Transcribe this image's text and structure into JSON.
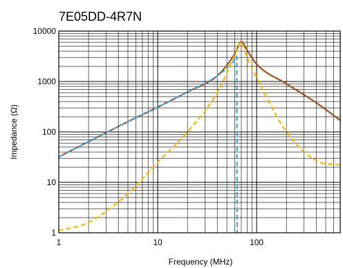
{
  "chart_data": {
    "type": "line",
    "title": "7E05DD-4R7N",
    "xlabel": "Frequency (MHz)",
    "ylabel": "Impedance (Ω)",
    "x_scale": "log",
    "y_scale": "log",
    "xlim": [
      1,
      700
    ],
    "ylim": [
      1,
      10000
    ],
    "x_tick_labels": [
      "1",
      "10",
      "100"
    ],
    "x_tick_values": [
      1,
      10,
      100
    ],
    "y_tick_labels": [
      "1",
      "10",
      "100",
      "1000",
      "10000"
    ],
    "y_tick_values": [
      1,
      10,
      100,
      1000,
      10000
    ],
    "grid": true,
    "legend": "none",
    "series": [
      {
        "color": "#A0501E",
        "style": "solid",
        "x": [
          1,
          2,
          5,
          10,
          20,
          40,
          60,
          70,
          80,
          100,
          200,
          400,
          700
        ],
        "y": [
          32,
          64,
          160,
          310,
          620,
          1300,
          3500,
          6200,
          4200,
          2200,
          900,
          380,
          170
        ]
      },
      {
        "color": "#3BAAD8",
        "style": "dashed",
        "x": [
          1,
          2,
          5,
          10,
          20,
          40,
          60,
          63,
          63.5,
          66
        ],
        "y": [
          32,
          64,
          160,
          310,
          620,
          1300,
          2700,
          3200,
          1,
          1
        ]
      },
      {
        "color": "#F5B800",
        "style": "dashed",
        "x": [
          1,
          2,
          5,
          10,
          20,
          40,
          60,
          70,
          80,
          100,
          200,
          400,
          700
        ],
        "y": [
          1.1,
          1.6,
          6,
          25,
          100,
          600,
          3300,
          6000,
          3000,
          1200,
          100,
          27,
          22
        ]
      }
    ]
  }
}
